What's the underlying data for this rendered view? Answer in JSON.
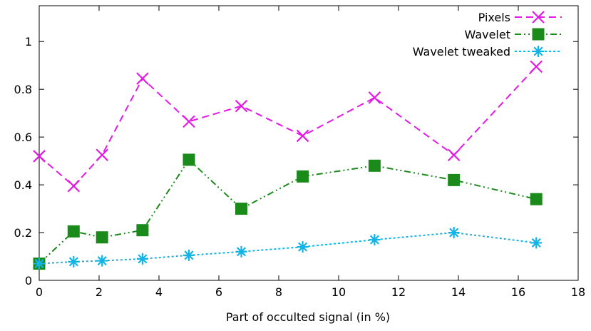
{
  "chart_data": {
    "type": "line",
    "title": "",
    "xlabel": "Part of occulted signal (in %)",
    "ylabel": "",
    "xlim": [
      0,
      18
    ],
    "ylim": [
      0,
      1.15
    ],
    "xticks": [
      0,
      2,
      4,
      6,
      8,
      10,
      12,
      14,
      16,
      18
    ],
    "xtick_labels": [
      "0",
      "2",
      "4",
      "6",
      "8",
      "10",
      "12",
      "14",
      "16",
      "18"
    ],
    "yticks": [
      0,
      0.2,
      0.4,
      0.6,
      0.8,
      1
    ],
    "ytick_labels": [
      "0",
      "0.2",
      "0.4",
      "0.6",
      "0.8",
      "1"
    ],
    "grid": false,
    "legend_position": "top-right",
    "x": [
      0,
      1.15,
      2.1,
      3.45,
      5.0,
      6.75,
      8.8,
      11.2,
      13.85,
      16.6
    ],
    "series": [
      {
        "name": "Pixels",
        "color": "#e41ae4",
        "marker": "x",
        "dash": "dashed",
        "values": [
          0.52,
          0.395,
          0.525,
          0.845,
          0.665,
          0.73,
          0.605,
          0.765,
          0.525,
          0.895
        ]
      },
      {
        "name": "Wavelet",
        "color": "#1a8a1a",
        "marker": "square",
        "dash": "dash-dot-dot",
        "values": [
          0.07,
          0.205,
          0.18,
          0.21,
          0.505,
          0.3,
          0.435,
          0.48,
          0.42,
          0.34
        ]
      },
      {
        "name": "Wavelet tweaked",
        "color": "#12b4e6",
        "marker": "asterisk",
        "dash": "dotted",
        "values": [
          0.07,
          0.078,
          0.082,
          0.09,
          0.105,
          0.12,
          0.14,
          0.17,
          0.2,
          0.157
        ]
      }
    ]
  }
}
